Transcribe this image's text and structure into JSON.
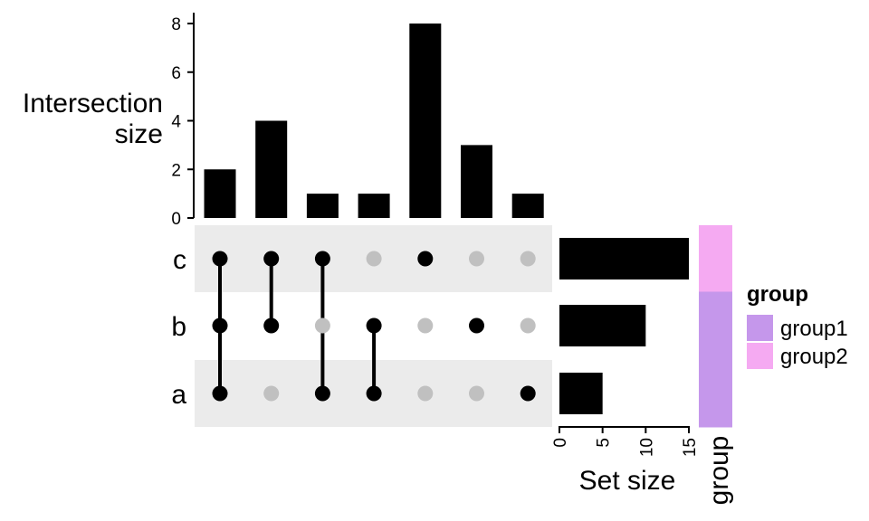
{
  "chart_data": {
    "type": "bar",
    "chart_kind": "upset",
    "sets": [
      "c",
      "b",
      "a"
    ],
    "set_colors": {
      "active": "#000000",
      "inactive": "#c0c0c0",
      "stripe": "#ebebeb"
    },
    "intersections": [
      {
        "members": [
          "c",
          "b",
          "a"
        ],
        "size": 2
      },
      {
        "members": [
          "c",
          "b"
        ],
        "size": 4
      },
      {
        "members": [
          "c",
          "a"
        ],
        "size": 1
      },
      {
        "members": [
          "b",
          "a"
        ],
        "size": 1
      },
      {
        "members": [
          "c"
        ],
        "size": 8
      },
      {
        "members": [
          "b"
        ],
        "size": 3
      },
      {
        "members": [
          "a"
        ],
        "size": 1
      }
    ],
    "intersection_axis": {
      "label_line1": "Intersection",
      "label_line2": "size",
      "ylim": [
        0,
        8
      ],
      "ticks": [
        "0",
        "2",
        "4",
        "6",
        "8"
      ]
    },
    "set_sizes": [
      {
        "set": "c",
        "size": 15
      },
      {
        "set": "b",
        "size": 10
      },
      {
        "set": "a",
        "size": 5
      }
    ],
    "set_size_axis": {
      "label": "Set size",
      "xlim": [
        0,
        15
      ],
      "ticks": [
        "0",
        "5",
        "10",
        "15"
      ]
    },
    "group_annotation": {
      "axis_label": "group",
      "assignments": [
        {
          "set": "c",
          "group": "group2"
        },
        {
          "set": "b",
          "group": "group1"
        },
        {
          "set": "a",
          "group": "group1"
        }
      ]
    },
    "legend": {
      "title": "group",
      "placement": "right",
      "entries": [
        {
          "label": "group1",
          "color": "#c597eb"
        },
        {
          "label": "group2",
          "color": "#f5aaf2"
        }
      ]
    }
  }
}
